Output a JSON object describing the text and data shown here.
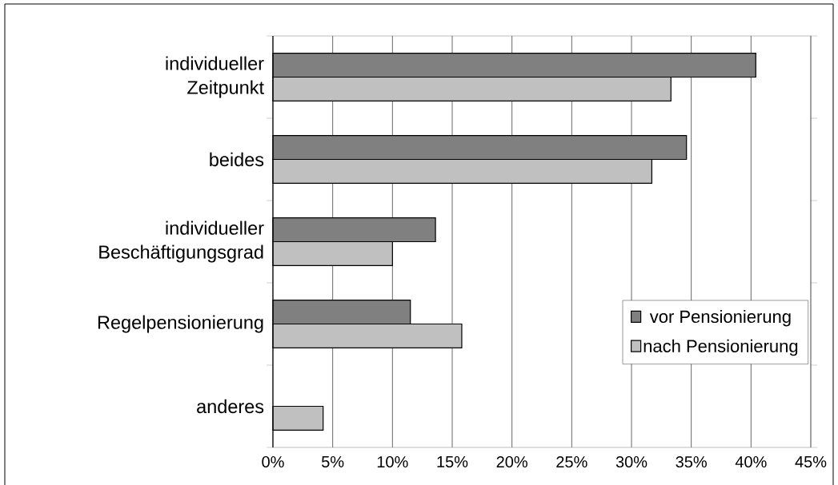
{
  "chart_data": {
    "type": "bar",
    "orientation": "horizontal",
    "categories": [
      "individueller Zeitpunkt",
      "beides",
      "individueller Beschäftigungsgrad",
      "Regelpensionierung",
      "anderes"
    ],
    "series": [
      {
        "name": "vor Pensionierung",
        "color": "#808080",
        "values": [
          40.4,
          34.6,
          13.6,
          11.5,
          null
        ]
      },
      {
        "name": "nach Pensionierung",
        "color": "#c0c0c0",
        "values": [
          33.3,
          31.7,
          10.0,
          15.8,
          4.2
        ]
      }
    ],
    "xlim": [
      0,
      45
    ],
    "xticks": [
      {
        "value": 0,
        "label": "0%"
      },
      {
        "value": 5,
        "label": "5%"
      },
      {
        "value": 10,
        "label": "10%"
      },
      {
        "value": 15,
        "label": "15%"
      },
      {
        "value": 20,
        "label": "20%"
      },
      {
        "value": 25,
        "label": "25%"
      },
      {
        "value": 30,
        "label": "30%"
      },
      {
        "value": 35,
        "label": "35%"
      },
      {
        "value": 40,
        "label": "40%"
      },
      {
        "value": 45,
        "label": "45%"
      }
    ],
    "grid": "x",
    "legend": "bottom right"
  }
}
